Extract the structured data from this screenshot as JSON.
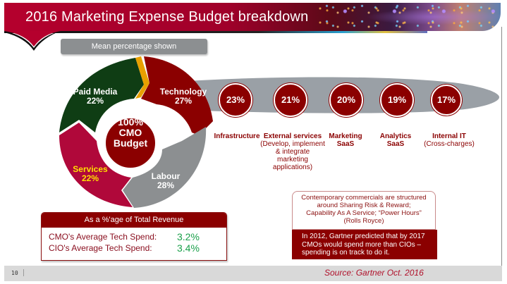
{
  "slide": {
    "title": "2016 Marketing Expense Budget breakdown",
    "mean_badge": "Mean percentage shown",
    "page_number": "10",
    "source": "Source: Gartner Oct. 2016"
  },
  "colors": {
    "brand_red": "#b5002d",
    "dark_red": "#8b0000",
    "paid_media_green": "#0f3d14",
    "services_red": "#b0083a",
    "labour_grey": "#8c8f91",
    "accent_orange": "#e8a000",
    "services_yellow": "#ffe000",
    "value_green": "#1aa04a"
  },
  "donut": {
    "center": [
      "100%",
      "CMO",
      "Budget"
    ],
    "segments": [
      {
        "name": "Paid Media",
        "value": "22%",
        "color": "#0f3d14"
      },
      {
        "name": "Technology",
        "value": "27%",
        "color": "#8b0000"
      },
      {
        "name": "Labour",
        "value": "28%",
        "color": "#8c8f91"
      },
      {
        "name": "Services",
        "value": "22%",
        "color": "#b0083a"
      }
    ]
  },
  "technology_breakdown": [
    {
      "value": "23%",
      "label": "Infrastructure",
      "sub": []
    },
    {
      "value": "21%",
      "label": "External services",
      "sub": [
        "(Develop, implement",
        "& integrate marketing",
        "applications)"
      ]
    },
    {
      "value": "20%",
      "label": "Marketing",
      "label2": "SaaS",
      "sub": []
    },
    {
      "value": "19%",
      "label": "Analytics",
      "label2": "SaaS",
      "sub": []
    },
    {
      "value": "17%",
      "label": "Internal IT",
      "sub": [
        "(Cross-charges)"
      ]
    }
  ],
  "revenue_box": {
    "heading": "As a %'age of Total Revenue",
    "rows": [
      {
        "label": "CMO's Average Tech Spend:",
        "value": "3.2%"
      },
      {
        "label": "CIO's Average Tech Spend:",
        "value": "3.4%"
      }
    ]
  },
  "commercial_box": {
    "top_lines": [
      "Contemporary commercials are structured",
      "around Sharing Risk & Reward;",
      "Capability As A Service; “Power Hours”",
      "(Rolls Royce)"
    ],
    "bottom_lines": [
      "In 2012, Gartner predicted that by 2017",
      "CMOs would spend more than CIOs –",
      "spending is on track to do it."
    ]
  }
}
